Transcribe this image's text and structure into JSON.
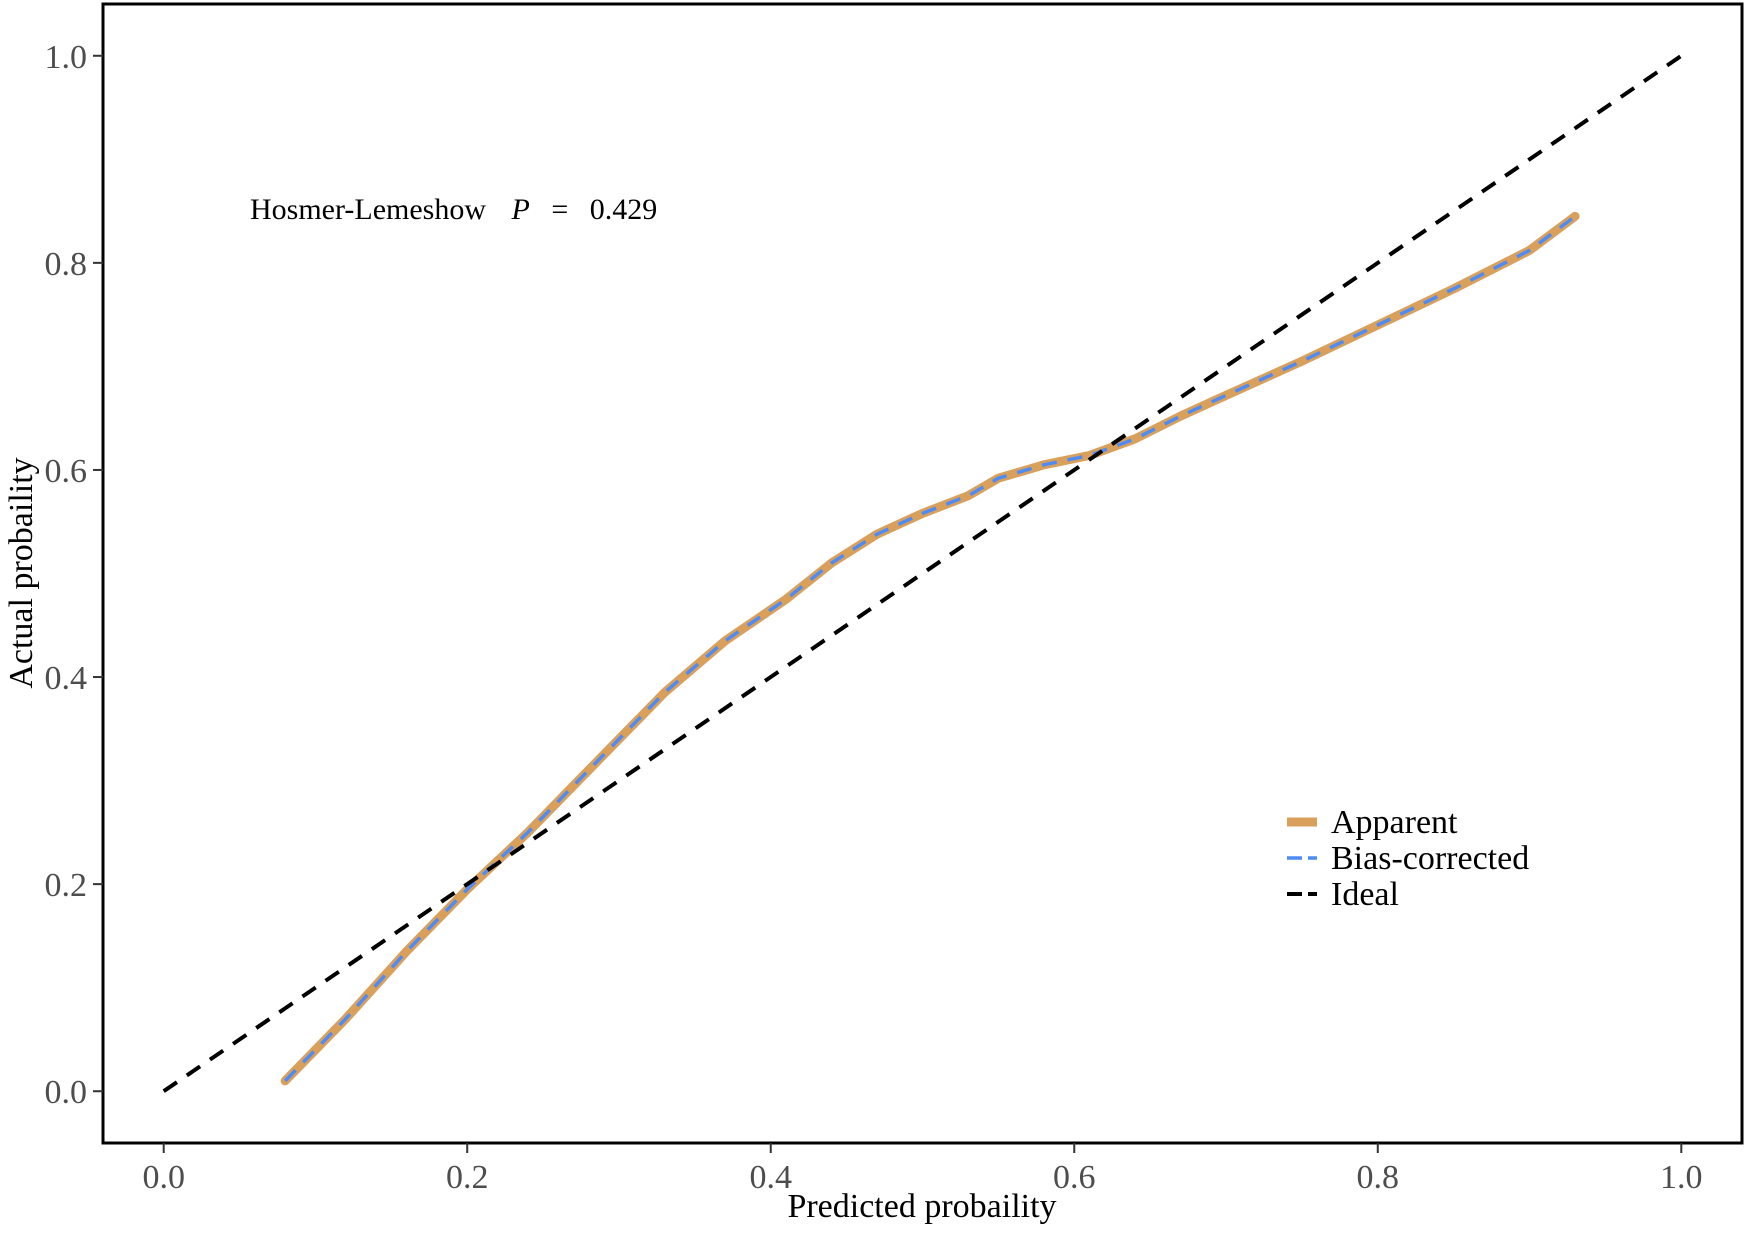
{
  "chart_data": {
    "type": "line",
    "xlabel": "Predicted probaility",
    "ylabel": "Actual probaility",
    "xlim": [
      -0.04,
      1.04
    ],
    "ylim": [
      -0.05,
      1.05
    ],
    "xticks": [
      0.0,
      0.2,
      0.4,
      0.6,
      0.8,
      1.0
    ],
    "yticks": [
      0.0,
      0.2,
      0.4,
      0.6,
      0.8,
      1.0
    ],
    "xtick_labels": [
      "0.0",
      "0.2",
      "0.4",
      "0.6",
      "0.8",
      "1.0"
    ],
    "ytick_labels": [
      "0.0",
      "0.2",
      "0.4",
      "0.6",
      "0.8",
      "1.0"
    ],
    "grid": false,
    "legend_position": "bottom-right",
    "annotation": {
      "label": "Hosmer-Lemeshow",
      "stat": "P",
      "equals": "=",
      "value": "0.429",
      "x": 0.04,
      "y": 0.85
    },
    "series": [
      {
        "name": "Apparent",
        "color": "#D9A05B",
        "style": "solid",
        "x": [
          0.08,
          0.12,
          0.16,
          0.2,
          0.24,
          0.28,
          0.33,
          0.37,
          0.41,
          0.44,
          0.47,
          0.5,
          0.53,
          0.55,
          0.58,
          0.61,
          0.64,
          0.67,
          0.7,
          0.75,
          0.8,
          0.85,
          0.9,
          0.93
        ],
        "y": [
          0.01,
          0.07,
          0.135,
          0.195,
          0.25,
          0.31,
          0.385,
          0.435,
          0.475,
          0.51,
          0.538,
          0.558,
          0.575,
          0.592,
          0.605,
          0.614,
          0.63,
          0.652,
          0.672,
          0.705,
          0.74,
          0.775,
          0.812,
          0.845
        ]
      },
      {
        "name": "Bias-corrected",
        "color": "#4F8BF5",
        "style": "dashed",
        "x": [
          0.08,
          0.12,
          0.16,
          0.2,
          0.24,
          0.28,
          0.33,
          0.37,
          0.41,
          0.44,
          0.47,
          0.5,
          0.53,
          0.55,
          0.58,
          0.61,
          0.64,
          0.67,
          0.7,
          0.75,
          0.8,
          0.85,
          0.9,
          0.93
        ],
        "y": [
          0.01,
          0.07,
          0.135,
          0.195,
          0.25,
          0.31,
          0.385,
          0.435,
          0.475,
          0.51,
          0.538,
          0.558,
          0.575,
          0.592,
          0.605,
          0.614,
          0.63,
          0.652,
          0.672,
          0.705,
          0.74,
          0.775,
          0.812,
          0.845
        ]
      },
      {
        "name": "Ideal",
        "color": "#000000",
        "style": "dashed",
        "x": [
          0.0,
          1.0
        ],
        "y": [
          0.0,
          1.0
        ]
      }
    ]
  }
}
